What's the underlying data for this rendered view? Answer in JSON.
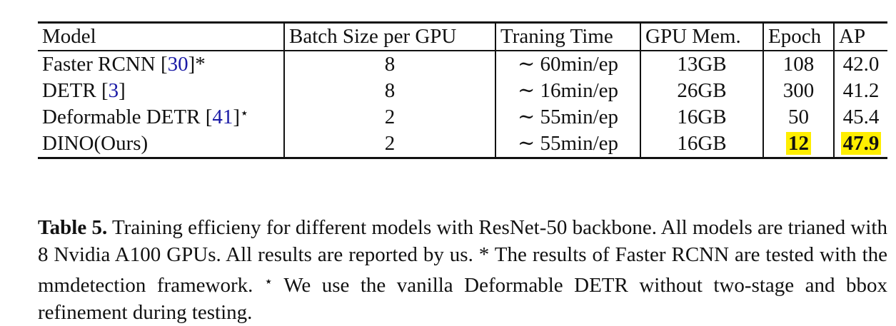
{
  "table": {
    "headers": [
      "Model",
      "Batch Size per GPU",
      "Traning Time",
      "GPU Mem.",
      "Epoch",
      "AP"
    ],
    "rows": [
      {
        "model": "Faster RCNN ",
        "ref": "30",
        "mark": "*",
        "batch": "8",
        "time": "∼ 60min/ep",
        "mem": "13GB",
        "epoch": "108",
        "ap": "42.0"
      },
      {
        "model": "DETR ",
        "ref": "3",
        "mark": "",
        "batch": "8",
        "time": "∼ 16min/ep",
        "mem": "26GB",
        "epoch": "300",
        "ap": "41.2"
      },
      {
        "model": "Deformable DETR ",
        "ref": "41",
        "mark": "⋆",
        "batch": "2",
        "time": "∼ 55min/ep",
        "mem": "16GB",
        "epoch": "50",
        "ap": "45.4"
      },
      {
        "model": "DINO(Ours)",
        "ref": "",
        "mark": "",
        "batch": "2",
        "time": "∼ 55min/ep",
        "mem": "16GB",
        "epoch": "12",
        "ap": "47.9"
      }
    ],
    "highlight_color": "#ffee00"
  },
  "caption": {
    "label": "Table 5.",
    "text_1": " Training efficieny for different models with ResNet-50 backbone. All models are trianed with 8 Nvidia A100 GPUs. All results are reported by us. * The results of Faster RCNN are tested with the mmdetection framework. ",
    "star_mark": "⋆",
    "text_2": " We use the vanilla Deformable DETR without two-stage and bbox refinement during testing."
  }
}
